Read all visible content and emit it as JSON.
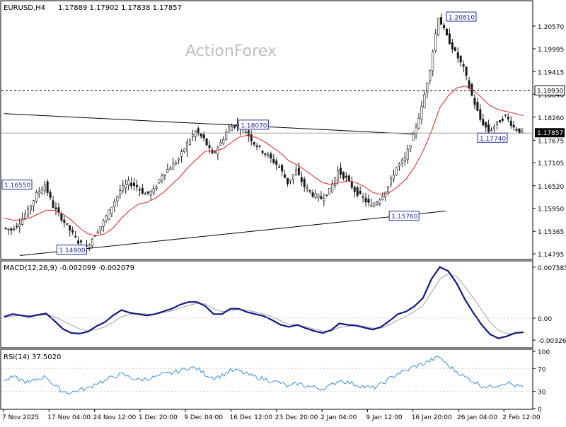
{
  "header": {
    "symbol": "EURUSD,H4",
    "ohlc": "1.17889 1.17902 1.17838 1.17857"
  },
  "watermark": "ActionForex",
  "colors": {
    "candle": "#1a1a1a",
    "ma": "#e02020",
    "macd_line": "#0c1a80",
    "macd_signal": "#a0a0a0",
    "rsi": "#3b8fd9",
    "grid_frame": "#000000",
    "label_box": "#1e2aa0",
    "current_price_bg": "#000000"
  },
  "price_panel": {
    "ymin": 1.1467,
    "ymax": 1.2116,
    "y_ticks": [
      "1.20570",
      "1.19995",
      "1.19415",
      "1.18840",
      "1.18260",
      "1.17675",
      "1.17105",
      "1.16520",
      "1.15950",
      "1.15365",
      "1.14795"
    ],
    "resistance_level": {
      "label": "1.18930",
      "value": 1.1893
    },
    "current_price": {
      "label": "1.17857",
      "value": 1.17857
    },
    "annotations": [
      {
        "label": "1.20810",
        "x": 88,
        "y": 1.2081
      },
      {
        "label": "1.18070",
        "x": 48,
        "y": 1.1807
      },
      {
        "label": "1.16550",
        "x": 0,
        "y": 1.1655
      },
      {
        "label": "1.14900",
        "x": 13,
        "y": 1.149
      },
      {
        "label": "1.15760",
        "x": 77,
        "y": 1.1576
      },
      {
        "label": "1.17740",
        "x": 94,
        "y": 1.1774
      }
    ],
    "trendlines": [
      {
        "x1": 0,
        "y1": 1.1835,
        "x2": 79,
        "y2": 1.1783
      },
      {
        "x1": 3,
        "y1": 1.1475,
        "x2": 85,
        "y2": 1.1588
      }
    ]
  },
  "macd_panel": {
    "label": "MACD(12,26,9) -0.002099 -0.002079",
    "ymin": -0.0042,
    "ymax": 0.0082,
    "y_ticks": [
      "0.007585",
      "0.00",
      "-0.003264"
    ]
  },
  "rsi_panel": {
    "label": "RSI(14) 37.5020",
    "y_ticks": [
      "100",
      "70",
      "30",
      "0"
    ]
  },
  "x_axis": {
    "labels": [
      "7 Nov 2025",
      "17 Nov 04:00",
      "24 Nov 12:00",
      "1 Dec 20:00",
      "9 Dec 04:00",
      "16 Dec 12:00",
      "23 Dec 20:00",
      "2 Jan 04:00",
      "9 Jan 12:00",
      "16 Jan 20:00",
      "26 Jan 04:00",
      "2 Feb 12:00"
    ]
  },
  "chart_data": {
    "type": "line",
    "title": "EURUSD,H4",
    "x_axis_dates": [
      "7 Nov 2025",
      "17 Nov 04:00",
      "24 Nov 12:00",
      "1 Dec 20:00",
      "9 Dec 04:00",
      "16 Dec 12:00",
      "23 Dec 20:00",
      "2 Jan 04:00",
      "9 Jan 12:00",
      "16 Jan 20:00",
      "26 Jan 04:00",
      "2 Feb 12:00"
    ],
    "ohlc_last": {
      "open": 1.17889,
      "high": 1.17902,
      "low": 1.17838,
      "close": 1.17857
    },
    "series": [
      {
        "name": "EURUSD,H4",
        "kind": "price",
        "values": [
          1.1545,
          1.154,
          1.156,
          1.159,
          1.163,
          1.1655,
          1.16,
          1.157,
          1.154,
          1.151,
          1.1495,
          1.153,
          1.156,
          1.16,
          1.164,
          1.166,
          1.165,
          1.163,
          1.164,
          1.168,
          1.17,
          1.172,
          1.176,
          1.179,
          1.177,
          1.173,
          1.176,
          1.18,
          1.1807,
          1.179,
          1.176,
          1.174,
          1.172,
          1.17,
          1.166,
          1.169,
          1.165,
          1.163,
          1.162,
          1.164,
          1.169,
          1.167,
          1.164,
          1.162,
          1.16,
          1.162,
          1.165,
          1.17,
          1.172,
          1.178,
          1.185,
          1.195,
          1.2081,
          1.203,
          1.199,
          1.195,
          1.188,
          1.182,
          1.179,
          1.181,
          1.183,
          1.18,
          1.1786
        ]
      },
      {
        "name": "MACD(12,26,9)",
        "kind": "macd",
        "values": [
          0.0002,
          0.0006,
          0.0004,
          0.0002,
          0.0005,
          0.0007,
          -0.0004,
          -0.0016,
          -0.0022,
          -0.0023,
          -0.002,
          -0.0012,
          -0.0006,
          0.0004,
          0.0012,
          0.0008,
          0.0006,
          0.0004,
          0.0006,
          0.001,
          0.0014,
          0.002,
          0.0024,
          0.0024,
          0.0018,
          0.0006,
          0.0006,
          0.0014,
          0.0014,
          0.0009,
          0.0006,
          0.0003,
          -0.0003,
          -0.001,
          -0.0013,
          -0.001,
          -0.0015,
          -0.0019,
          -0.0022,
          -0.0018,
          -0.0008,
          -0.001,
          -0.0011,
          -0.0014,
          -0.0017,
          -0.0013,
          -0.0004,
          0.0006,
          0.001,
          0.0018,
          0.003,
          0.0058,
          0.0076,
          0.007,
          0.0052,
          0.0028,
          0.0008,
          -0.001,
          -0.0024,
          -0.003,
          -0.0027,
          -0.0022,
          -0.0021
        ]
      },
      {
        "name": "MACD signal",
        "kind": "macd_signal",
        "values": [
          0.0001,
          0.0003,
          0.0004,
          0.0004,
          0.0004,
          0.0005,
          0.0002,
          -0.0004,
          -0.001,
          -0.0016,
          -0.0019,
          -0.0017,
          -0.0013,
          -0.0006,
          0.0002,
          0.0006,
          0.0007,
          0.0006,
          0.0006,
          0.0008,
          0.0011,
          0.0015,
          0.0019,
          0.0022,
          0.0021,
          0.0014,
          0.001,
          0.0011,
          0.0013,
          0.0012,
          0.0009,
          0.0006,
          0.0002,
          -0.0004,
          -0.0009,
          -0.0011,
          -0.0013,
          -0.0016,
          -0.0019,
          -0.0019,
          -0.0014,
          -0.0012,
          -0.0011,
          -0.0012,
          -0.0015,
          -0.0015,
          -0.001,
          -0.0003,
          0.0003,
          0.001,
          0.0019,
          0.0038,
          0.0058,
          0.0066,
          0.0062,
          0.0047,
          0.003,
          0.0012,
          -0.0006,
          -0.0018,
          -0.0023,
          -0.0023,
          -0.0021
        ]
      },
      {
        "name": "RSI(14)",
        "kind": "rsi",
        "values": [
          48,
          55,
          50,
          45,
          52,
          56,
          40,
          30,
          28,
          33,
          35,
          45,
          48,
          56,
          60,
          55,
          50,
          52,
          55,
          60,
          62,
          66,
          72,
          70,
          60,
          54,
          58,
          66,
          66,
          60,
          55,
          52,
          48,
          45,
          38,
          44,
          40,
          37,
          35,
          40,
          50,
          46,
          42,
          38,
          36,
          42,
          52,
          62,
          66,
          74,
          78,
          85,
          90,
          75,
          65,
          55,
          48,
          40,
          38,
          42,
          46,
          40,
          37.5
        ]
      }
    ],
    "moving_average": [
      1.157,
      1.1565,
      1.1565,
      1.157,
      1.158,
      1.159,
      1.159,
      1.158,
      1.1565,
      1.1545,
      1.153,
      1.1525,
      1.153,
      1.1545,
      1.157,
      1.159,
      1.1605,
      1.161,
      1.162,
      1.1635,
      1.1655,
      1.1675,
      1.17,
      1.172,
      1.174,
      1.174,
      1.1745,
      1.176,
      1.1775,
      1.178,
      1.1775,
      1.1765,
      1.175,
      1.1735,
      1.1715,
      1.1705,
      1.169,
      1.1675,
      1.166,
      1.1655,
      1.166,
      1.1665,
      1.166,
      1.165,
      1.1635,
      1.163,
      1.1635,
      1.165,
      1.167,
      1.17,
      1.174,
      1.179,
      1.185,
      1.188,
      1.19,
      1.1905,
      1.1895,
      1.1875,
      1.1855,
      1.1845,
      1.184,
      1.1835,
      1.183
    ],
    "reference_lines": [
      {
        "name": "resistance",
        "value": 1.1893
      }
    ],
    "price_range": [
      1.1467,
      1.2116
    ],
    "macd_range": [
      -0.0042,
      0.0082
    ],
    "rsi_range": [
      0,
      100
    ],
    "rsi_levels": [
      70,
      30
    ],
    "grid": false
  }
}
